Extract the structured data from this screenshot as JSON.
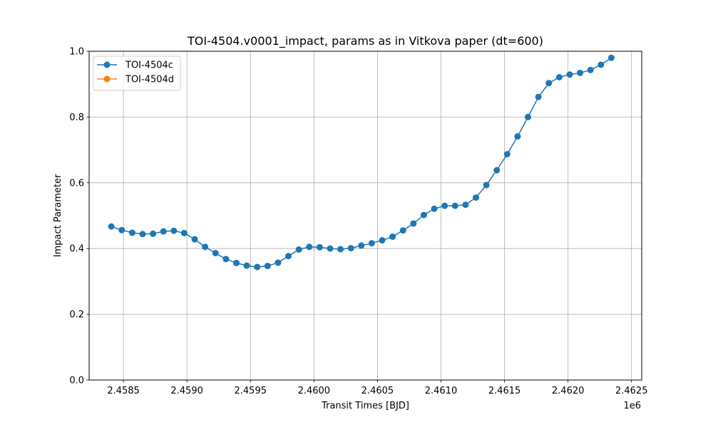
{
  "chart_data": {
    "type": "line",
    "title": "TOI-4504.v0001_impact, params as in Vitkova paper (dt=600)",
    "xlabel": "Transit Times [BJD]",
    "ylabel": "Impact Parameter",
    "x_offset_label": "1e6",
    "xlim": [
      2.45823,
      2.46258
    ],
    "ylim": [
      0.0,
      1.0
    ],
    "xticks": [
      2.4585,
      2.459,
      2.4595,
      2.46,
      2.4605,
      2.461,
      2.4615,
      2.462,
      2.4625
    ],
    "xtick_labels": [
      "2.4585",
      "2.4590",
      "2.4595",
      "2.4600",
      "2.4605",
      "2.4610",
      "2.4615",
      "2.4620",
      "2.4625"
    ],
    "yticks": [
      0.0,
      0.2,
      0.4,
      0.6,
      0.8,
      1.0
    ],
    "ytick_labels": [
      "0.0",
      "0.2",
      "0.4",
      "0.6",
      "0.8",
      "1.0"
    ],
    "grid": true,
    "legend_position": "top-left",
    "series": [
      {
        "name": "TOI-4504c",
        "color": "#1f77b4",
        "marker": "circle",
        "x": [
          2.458405,
          2.458487,
          2.458569,
          2.458651,
          2.458733,
          2.458815,
          2.458897,
          2.458979,
          2.459061,
          2.459143,
          2.459225,
          2.459307,
          2.459389,
          2.459471,
          2.459553,
          2.459635,
          2.459717,
          2.459799,
          2.459881,
          2.459963,
          2.460045,
          2.460127,
          2.460209,
          2.460291,
          2.460373,
          2.460455,
          2.460537,
          2.460619,
          2.460701,
          2.460783,
          2.460865,
          2.460947,
          2.461029,
          2.461111,
          2.461193,
          2.461275,
          2.461357,
          2.461439,
          2.461521,
          2.461603,
          2.461685,
          2.461767,
          2.461849,
          2.461931,
          2.462013,
          2.462095,
          2.462177,
          2.462259,
          2.462341
        ],
        "y": [
          0.467,
          0.456,
          0.448,
          0.444,
          0.445,
          0.452,
          0.454,
          0.447,
          0.428,
          0.405,
          0.386,
          0.368,
          0.356,
          0.348,
          0.344,
          0.347,
          0.357,
          0.377,
          0.397,
          0.405,
          0.404,
          0.4,
          0.398,
          0.401,
          0.409,
          0.416,
          0.425,
          0.436,
          0.455,
          0.476,
          0.502,
          0.521,
          0.53,
          0.53,
          0.533,
          0.555,
          0.593,
          0.638,
          0.687,
          0.741,
          0.8,
          0.861,
          0.903,
          0.921,
          0.929,
          0.934,
          0.943,
          0.959,
          0.98
        ]
      },
      {
        "name": "TOI-4504d",
        "color": "#ff7f0e",
        "marker": "circle",
        "x": [],
        "y": []
      }
    ]
  }
}
